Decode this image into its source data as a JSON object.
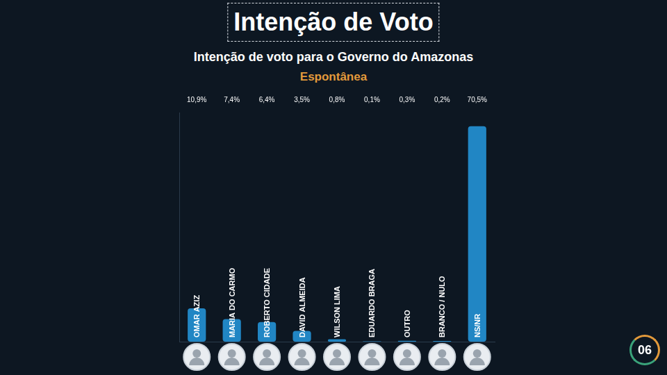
{
  "heading": "Intenção de Voto",
  "page_number": "06",
  "chart_data": {
    "type": "bar",
    "title": "Intenção de voto para o Governo do Amazonas",
    "subtitle": "Espontânea",
    "categories": [
      "OMAR AZIZ",
      "MARIA DO CARMO",
      "ROBERTO CIDADE",
      "DAVID ALMEIDA",
      "WILSON LIMA",
      "EDUARDO BRAGA",
      "OUTRO",
      "BRANCO / NULO",
      "NS/NR"
    ],
    "values": [
      10.9,
      7.4,
      6.4,
      3.5,
      0.8,
      0.1,
      0.3,
      0.2,
      70.5
    ],
    "value_labels": [
      "10,9%",
      "7,4%",
      "6,4%",
      "3,5%",
      "0,8%",
      "0,1%",
      "0,3%",
      "0,2%",
      "70,5%"
    ],
    "color": "#2186c4",
    "ylim": [
      0,
      75
    ],
    "grid": false,
    "tick_labels": false,
    "data_labels": true
  }
}
